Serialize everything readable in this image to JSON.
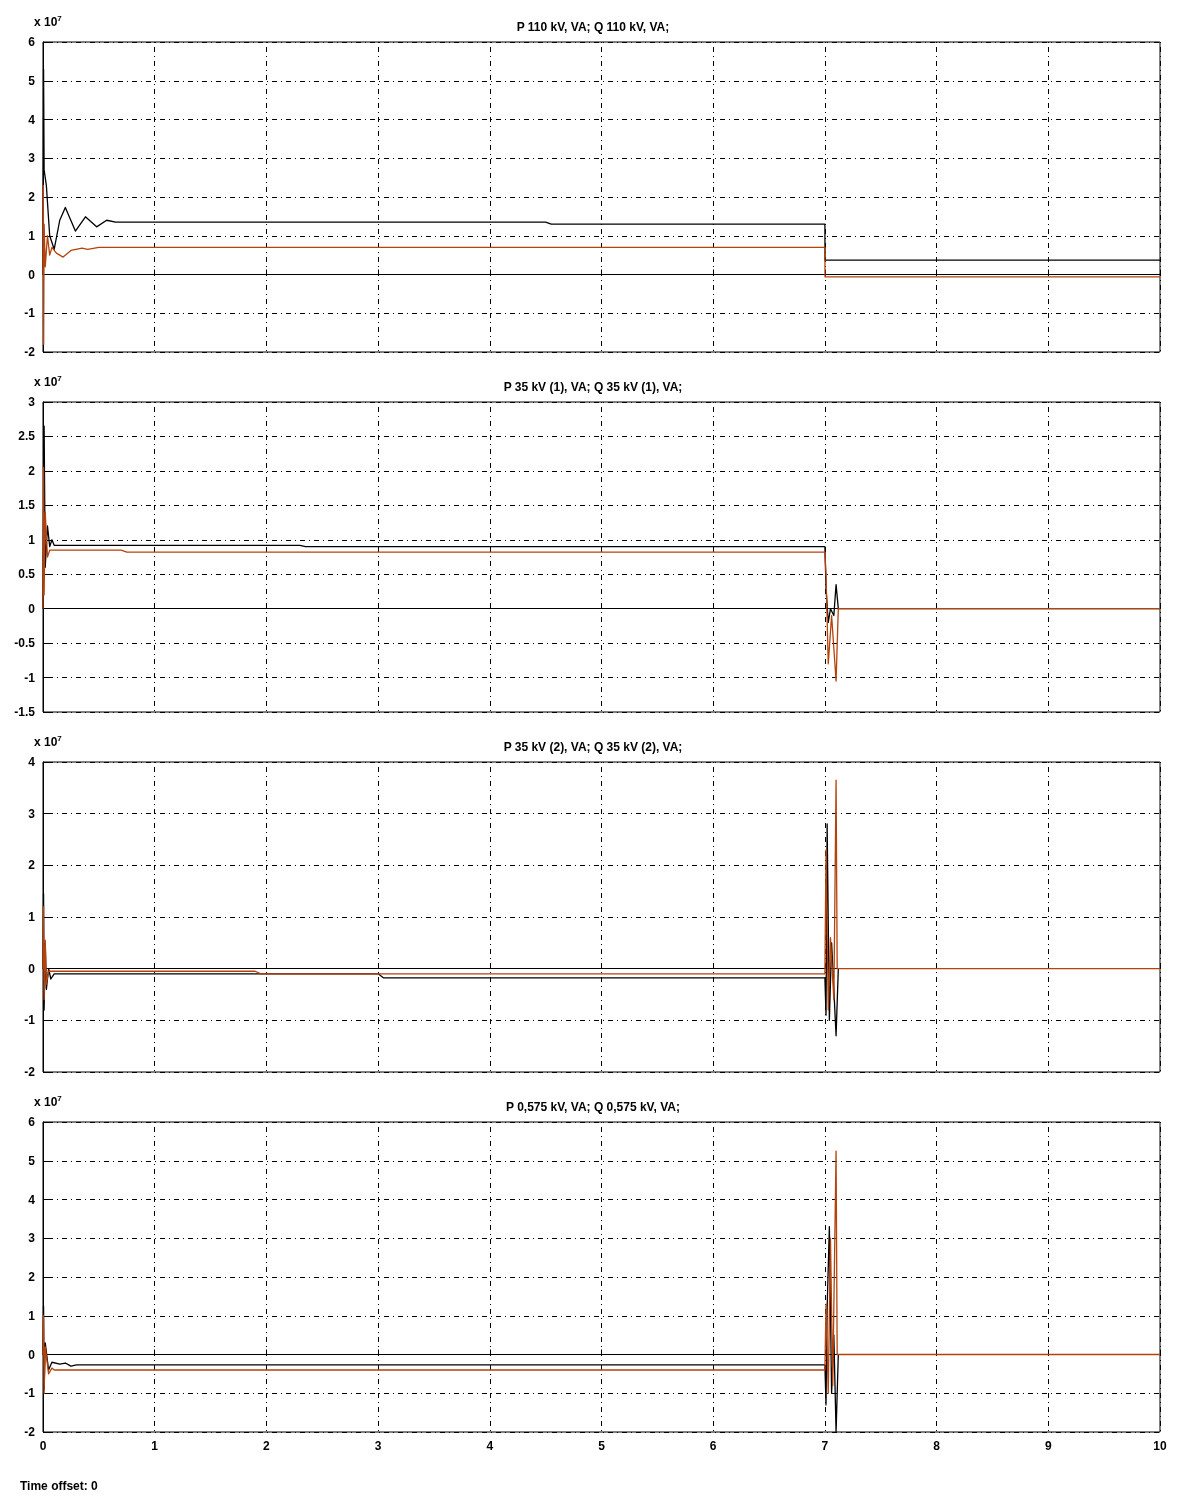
{
  "chart_data": [
    {
      "type": "line",
      "title": "P 110 kV, VA; Q 110 kV, VA;",
      "annotations": [
        "x 10$^{7}$"
      ],
      "xlim": [
        0,
        10
      ],
      "xticks": [
        0,
        1,
        2,
        3,
        4,
        5,
        6,
        7,
        8,
        9,
        10
      ],
      "ylim": [
        -2,
        6
      ],
      "yticks": [
        -2,
        -1,
        0,
        1,
        2,
        3,
        4,
        5,
        6
      ],
      "grid": true,
      "tick_labels": "y",
      "marker": "none",
      "line_style": "solid",
      "series": [
        {
          "color": "#000000",
          "x": [
            0,
            0.005,
            0.01,
            0.02,
            0.03,
            0.06,
            0.1,
            0.15,
            0.2,
            0.29,
            0.38,
            0.48,
            0.57,
            0.65,
            4.5,
            4.55,
            7,
            7.001,
            10
          ],
          "values": [
            0,
            5.3,
            2.7,
            2.5,
            2.3,
            1.0,
            0.65,
            1.4,
            1.73,
            1.12,
            1.49,
            1.23,
            1.4,
            1.35,
            1.35,
            1.3,
            1.3,
            0.37,
            0.37
          ]
        },
        {
          "color": "#b5420a",
          "x": [
            0,
            0.003,
            0.006,
            0.01,
            0.02,
            0.04,
            0.06,
            0.08,
            0.12,
            0.18,
            0.25,
            0.35,
            0.4,
            0.5,
            7,
            7.001,
            10
          ],
          "values": [
            0,
            2.3,
            -1.8,
            1.3,
            0.2,
            1.0,
            0.5,
            0.7,
            0.55,
            0.45,
            0.62,
            0.68,
            0.65,
            0.7,
            0.7,
            -0.06,
            -0.06
          ]
        }
      ]
    },
    {
      "type": "line",
      "title": "P 35 kV (1), VA; Q 35 kV (1), VA;",
      "annotations": [
        "x 10$^{7}$"
      ],
      "xlim": [
        0,
        10
      ],
      "xticks": [
        0,
        1,
        2,
        3,
        4,
        5,
        6,
        7,
        8,
        9,
        10
      ],
      "ylim": [
        -1.5,
        3
      ],
      "yticks": [
        -1.5,
        -1,
        -0.5,
        0,
        0.5,
        1,
        1.5,
        2,
        2.5,
        3
      ],
      "grid": true,
      "tick_labels": "y",
      "marker": "none",
      "line_style": "solid",
      "series": [
        {
          "color": "#000000",
          "x": [
            0,
            0.01,
            0.02,
            0.04,
            0.06,
            0.08,
            0.1,
            2.3,
            2.35,
            7,
            7.01,
            7.03,
            7.05,
            7.08,
            7.1,
            7.12,
            10
          ],
          "values": [
            0,
            2.65,
            0.6,
            1.2,
            0.9,
            1.0,
            0.92,
            0.92,
            0.9,
            0.9,
            0.3,
            -0.2,
            0,
            -0.1,
            0.35,
            0,
            0
          ]
        },
        {
          "color": "#b5420a",
          "x": [
            0,
            0.005,
            0.01,
            0.02,
            0.04,
            0.06,
            0.7,
            0.75,
            7,
            7.01,
            7.03,
            7.06,
            7.1,
            7.12,
            10
          ],
          "values": [
            0,
            2.05,
            0.2,
            1.4,
            0.75,
            0.85,
            0.85,
            0.82,
            0.82,
            0.5,
            -0.8,
            -0.1,
            -1.05,
            0,
            0
          ]
        }
      ]
    },
    {
      "type": "line",
      "title": "P 35 kV (2), VA; Q 35 kV (2), VA;",
      "annotations": [
        "x 10$^{7}$"
      ],
      "xlim": [
        0,
        10
      ],
      "xticks": [
        0,
        1,
        2,
        3,
        4,
        5,
        6,
        7,
        8,
        9,
        10
      ],
      "ylim": [
        -2,
        4
      ],
      "yticks": [
        -2,
        -1,
        0,
        1,
        2,
        3,
        4
      ],
      "grid": true,
      "tick_labels": "y",
      "marker": "none",
      "line_style": "solid",
      "series": [
        {
          "color": "#000000",
          "x": [
            0,
            0.005,
            0.01,
            0.02,
            0.03,
            0.05,
            0.07,
            0.1,
            3,
            3.05,
            7,
            7.01,
            7.02,
            7.04,
            7.06,
            7.08,
            7.1,
            7.12
          ],
          "values": [
            0,
            1.45,
            -0.8,
            0.5,
            -0.4,
            0,
            -0.2,
            -0.1,
            -0.1,
            -0.18,
            -0.18,
            -0.9,
            2.8,
            -1.0,
            0.5,
            -0.4,
            -1.3,
            0
          ]
        },
        {
          "color": "#b5420a",
          "x": [
            0,
            0.005,
            0.01,
            0.02,
            0.03,
            0.05,
            1.9,
            1.95,
            7,
            7.01,
            7.03,
            7.05,
            7.08,
            7.1,
            7.11,
            10
          ],
          "values": [
            0,
            1.2,
            -0.6,
            0.55,
            -0.3,
            -0.05,
            -0.05,
            -0.1,
            -0.1,
            2.3,
            -0.8,
            0.6,
            -0.6,
            3.65,
            0,
            0
          ]
        }
      ]
    },
    {
      "type": "line",
      "title": "P 0,575 kV, VA; Q 0,575 kV, VA;",
      "annotations": [
        "x 10$^{7}$",
        "Time offset: 0"
      ],
      "xlim": [
        0,
        10
      ],
      "xticks": [
        0,
        1,
        2,
        3,
        4,
        5,
        6,
        7,
        8,
        9,
        10
      ],
      "ylim": [
        -2,
        6
      ],
      "yticks": [
        -2,
        -1,
        0,
        1,
        2,
        3,
        4,
        5,
        6
      ],
      "grid": true,
      "marker": "none",
      "line_style": "solid",
      "series": [
        {
          "color": "#000000",
          "x": [
            0,
            0.005,
            0.01,
            0.02,
            0.05,
            0.08,
            0.15,
            0.2,
            0.25,
            0.3,
            7,
            7.01,
            7.02,
            7.04,
            7.06,
            7.08,
            7.1,
            7.12
          ],
          "values": [
            0,
            1.25,
            -0.9,
            0.3,
            -0.4,
            -0.2,
            -0.25,
            -0.22,
            -0.3,
            -0.27,
            -0.27,
            -1.3,
            1.2,
            3.3,
            -1.0,
            0.5,
            -2.0,
            0
          ]
        },
        {
          "color": "#b5420a",
          "x": [
            0,
            0.005,
            0.01,
            0.02,
            0.05,
            0.08,
            0.1,
            7,
            7.01,
            7.03,
            7.05,
            7.07,
            7.1,
            7.11,
            10
          ],
          "values": [
            0,
            1.0,
            -1.0,
            0.2,
            -0.5,
            -0.35,
            -0.4,
            -0.4,
            1.3,
            -1.0,
            3.0,
            -0.8,
            5.25,
            0,
            0
          ]
        }
      ]
    }
  ]
}
